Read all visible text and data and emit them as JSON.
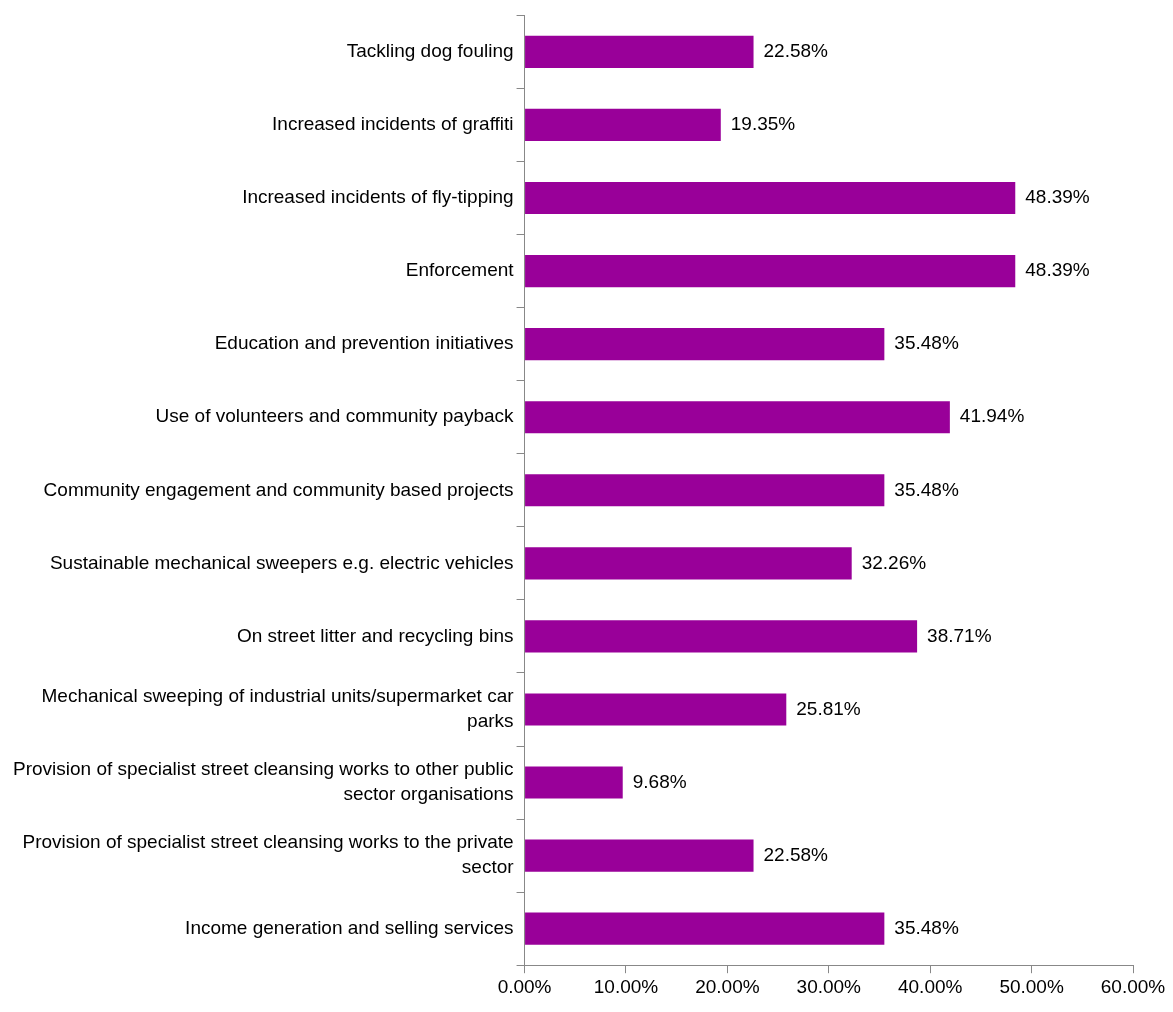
{
  "chart_data": {
    "type": "bar",
    "orientation": "horizontal",
    "categories": [
      "Tackling dog fouling",
      "Increased incidents of graffiti",
      "Increased incidents of fly-tipping",
      "Enforcement",
      "Education and prevention initiatives",
      "Use of volunteers and community payback",
      "Community engagement and community based projects",
      "Sustainable mechanical sweepers e.g. electric vehicles",
      "On street litter and recycling bins",
      "Mechanical sweeping of industrial units/supermarket car parks",
      "Provision of specialist street cleansing works to other public sector organisations",
      "Provision of specialist street cleansing works to the private sector",
      "Income generation and selling services"
    ],
    "values": [
      22.58,
      19.35,
      48.39,
      48.39,
      35.48,
      41.94,
      35.48,
      32.26,
      38.71,
      25.81,
      9.68,
      22.58,
      35.48
    ],
    "value_labels": [
      "22.58%",
      "19.35%",
      "48.39%",
      "48.39%",
      "35.48%",
      "41.94%",
      "35.48%",
      "32.26%",
      "38.71%",
      "25.81%",
      "9.68%",
      "22.58%",
      "35.48%"
    ],
    "color": "#990099",
    "xlim": [
      0,
      60
    ],
    "xticks": [
      {
        "value": 0,
        "label": "0.00%"
      },
      {
        "value": 10,
        "label": "10.00%"
      },
      {
        "value": 20,
        "label": "20.00%"
      },
      {
        "value": 30,
        "label": "30.00%"
      },
      {
        "value": 40,
        "label": "40.00%"
      },
      {
        "value": 50,
        "label": "50.00%"
      },
      {
        "value": 60,
        "label": "60.00%"
      }
    ],
    "grid": false,
    "legend": false
  }
}
